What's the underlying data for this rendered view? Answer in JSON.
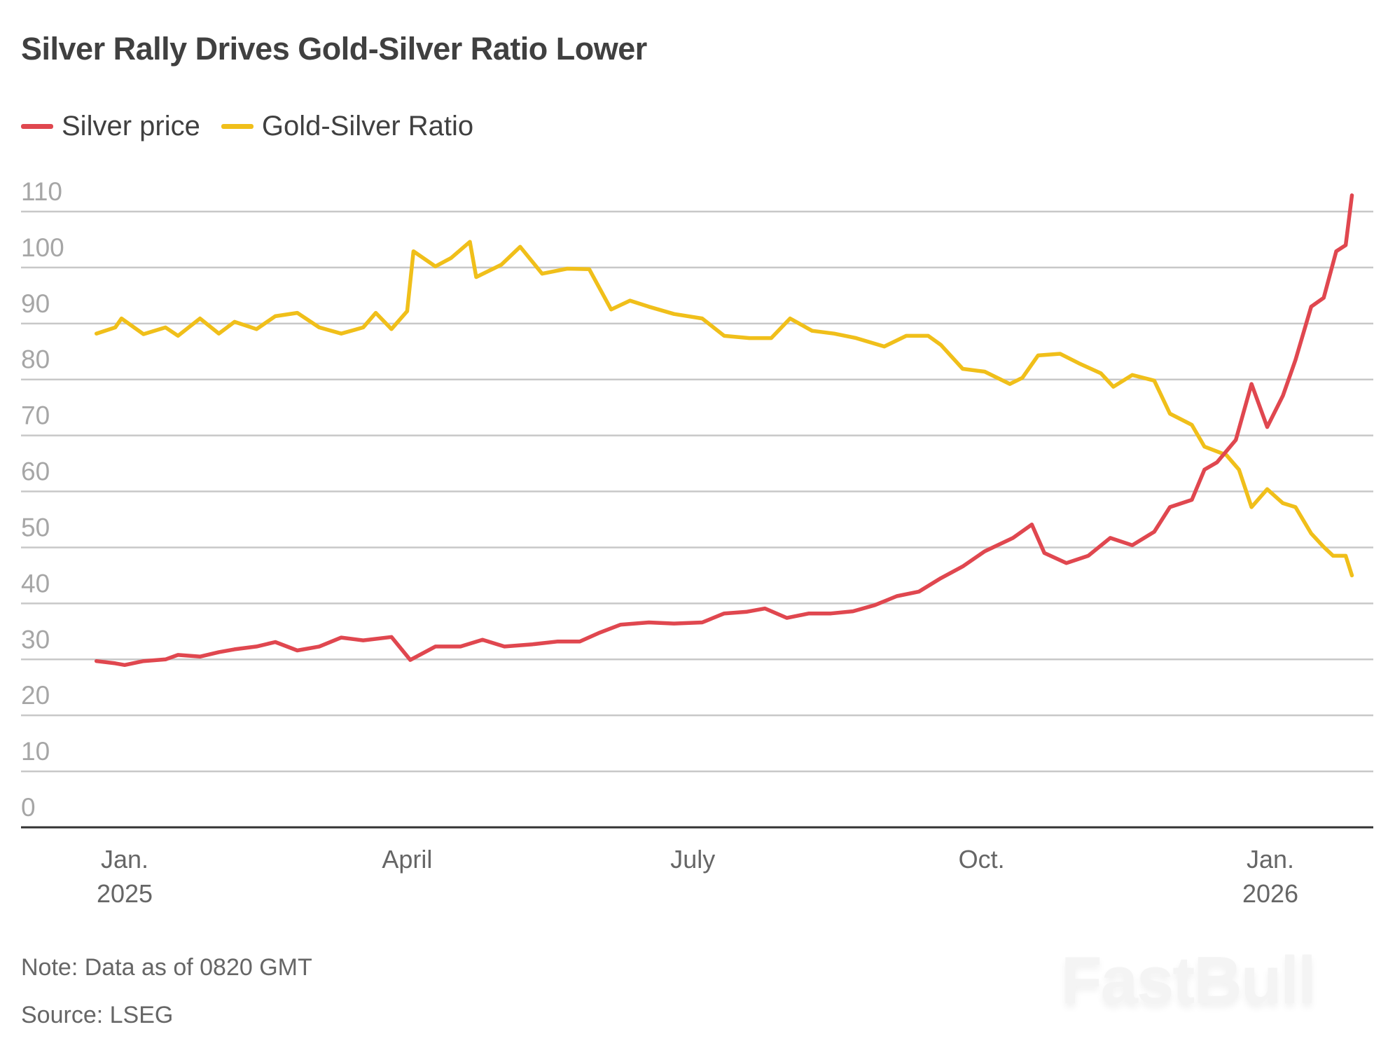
{
  "chart_data": {
    "type": "line",
    "title": "Silver Rally Drives Gold-Silver Ratio Lower",
    "xlabel": "",
    "ylabel": "",
    "ylim": [
      0,
      110
    ],
    "yticks": [
      0,
      10,
      20,
      30,
      40,
      50,
      60,
      70,
      80,
      90,
      100,
      110
    ],
    "grid": true,
    "legend_position": "top-left",
    "xticks": [
      {
        "date": "2025-01-01",
        "label": "Jan.",
        "sublabel": "2025"
      },
      {
        "date": "2025-04-01",
        "label": "April",
        "sublabel": ""
      },
      {
        "date": "2025-07-01",
        "label": "July",
        "sublabel": ""
      },
      {
        "date": "2025-10-01",
        "label": "Oct.",
        "sublabel": ""
      },
      {
        "date": "2026-01-01",
        "label": "Jan.",
        "sublabel": "2026"
      }
    ],
    "series": [
      {
        "name": "Silver price",
        "color": "#e0474f",
        "points": [
          [
            "2024-12-23",
            29.7
          ],
          [
            "2024-12-29",
            29.3
          ],
          [
            "2025-01-01",
            29.0
          ],
          [
            "2025-01-07",
            29.7
          ],
          [
            "2025-01-14",
            30.0
          ],
          [
            "2025-01-18",
            30.8
          ],
          [
            "2025-01-25",
            30.5
          ],
          [
            "2025-01-31",
            31.3
          ],
          [
            "2025-02-05",
            31.8
          ],
          [
            "2025-02-12",
            32.3
          ],
          [
            "2025-02-18",
            33.1
          ],
          [
            "2025-02-25",
            31.6
          ],
          [
            "2025-03-04",
            32.3
          ],
          [
            "2025-03-11",
            33.9
          ],
          [
            "2025-03-18",
            33.4
          ],
          [
            "2025-03-27",
            34.0
          ],
          [
            "2025-04-02",
            29.9
          ],
          [
            "2025-04-10",
            32.3
          ],
          [
            "2025-04-18",
            32.3
          ],
          [
            "2025-04-25",
            33.5
          ],
          [
            "2025-05-02",
            32.3
          ],
          [
            "2025-05-11",
            32.7
          ],
          [
            "2025-05-19",
            33.2
          ],
          [
            "2025-05-26",
            33.2
          ],
          [
            "2025-06-01",
            34.7
          ],
          [
            "2025-06-08",
            36.2
          ],
          [
            "2025-06-17",
            36.6
          ],
          [
            "2025-06-25",
            36.4
          ],
          [
            "2025-07-04",
            36.6
          ],
          [
            "2025-07-11",
            38.2
          ],
          [
            "2025-07-18",
            38.5
          ],
          [
            "2025-07-24",
            39.1
          ],
          [
            "2025-07-31",
            37.4
          ],
          [
            "2025-08-07",
            38.2
          ],
          [
            "2025-08-14",
            38.2
          ],
          [
            "2025-08-21",
            38.6
          ],
          [
            "2025-08-28",
            39.7
          ],
          [
            "2025-09-04",
            41.3
          ],
          [
            "2025-09-11",
            42.1
          ],
          [
            "2025-09-18",
            44.5
          ],
          [
            "2025-09-25",
            46.6
          ],
          [
            "2025-10-02",
            49.3
          ],
          [
            "2025-10-11",
            51.7
          ],
          [
            "2025-10-17",
            54.1
          ],
          [
            "2025-10-21",
            49.0
          ],
          [
            "2025-10-28",
            47.2
          ],
          [
            "2025-11-04",
            48.5
          ],
          [
            "2025-11-11",
            51.7
          ],
          [
            "2025-11-18",
            50.4
          ],
          [
            "2025-11-25",
            52.8
          ],
          [
            "2025-11-30",
            57.2
          ],
          [
            "2025-12-07",
            58.5
          ],
          [
            "2025-12-11",
            63.9
          ],
          [
            "2025-12-15",
            65.2
          ],
          [
            "2025-12-21",
            69.2
          ],
          [
            "2025-12-26",
            79.2
          ],
          [
            "2025-12-31",
            71.5
          ],
          [
            "2026-01-05",
            77.1
          ],
          [
            "2026-01-09",
            83.5
          ],
          [
            "2026-01-14",
            93.0
          ],
          [
            "2026-01-18",
            94.6
          ],
          [
            "2026-01-22",
            102.9
          ],
          [
            "2026-01-25",
            104.0
          ],
          [
            "2026-01-27",
            112.9
          ]
        ]
      },
      {
        "name": "Gold-Silver Ratio",
        "color": "#f0bf1a",
        "points": [
          [
            "2024-12-23",
            88.2
          ],
          [
            "2024-12-29",
            89.3
          ],
          [
            "2024-12-31",
            90.9
          ],
          [
            "2025-01-07",
            88.1
          ],
          [
            "2025-01-14",
            89.3
          ],
          [
            "2025-01-18",
            87.8
          ],
          [
            "2025-01-25",
            90.9
          ],
          [
            "2025-01-31",
            88.2
          ],
          [
            "2025-02-05",
            90.3
          ],
          [
            "2025-02-12",
            89.0
          ],
          [
            "2025-02-18",
            91.3
          ],
          [
            "2025-02-25",
            91.9
          ],
          [
            "2025-03-04",
            89.3
          ],
          [
            "2025-03-11",
            88.2
          ],
          [
            "2025-03-18",
            89.3
          ],
          [
            "2025-03-22",
            91.9
          ],
          [
            "2025-03-27",
            89.0
          ],
          [
            "2025-04-01",
            92.2
          ],
          [
            "2025-04-03",
            102.9
          ],
          [
            "2025-04-10",
            100.2
          ],
          [
            "2025-04-15",
            101.7
          ],
          [
            "2025-04-21",
            104.6
          ],
          [
            "2025-04-23",
            98.3
          ],
          [
            "2025-05-01",
            100.5
          ],
          [
            "2025-05-07",
            103.7
          ],
          [
            "2025-05-14",
            98.9
          ],
          [
            "2025-05-22",
            99.8
          ],
          [
            "2025-05-29",
            99.7
          ],
          [
            "2025-06-05",
            92.5
          ],
          [
            "2025-06-11",
            94.1
          ],
          [
            "2025-06-17",
            93.0
          ],
          [
            "2025-06-25",
            91.7
          ],
          [
            "2025-07-04",
            90.9
          ],
          [
            "2025-07-11",
            87.8
          ],
          [
            "2025-07-19",
            87.4
          ],
          [
            "2025-07-26",
            87.4
          ],
          [
            "2025-08-01",
            90.9
          ],
          [
            "2025-08-08",
            88.7
          ],
          [
            "2025-08-15",
            88.2
          ],
          [
            "2025-08-22",
            87.4
          ],
          [
            "2025-08-31",
            85.9
          ],
          [
            "2025-09-07",
            87.8
          ],
          [
            "2025-09-14",
            87.8
          ],
          [
            "2025-09-18",
            86.2
          ],
          [
            "2025-09-25",
            81.9
          ],
          [
            "2025-10-02",
            81.4
          ],
          [
            "2025-10-10",
            79.2
          ],
          [
            "2025-10-14",
            80.3
          ],
          [
            "2025-10-19",
            84.3
          ],
          [
            "2025-10-26",
            84.6
          ],
          [
            "2025-11-01",
            82.9
          ],
          [
            "2025-11-08",
            81.1
          ],
          [
            "2025-11-12",
            78.7
          ],
          [
            "2025-11-18",
            80.8
          ],
          [
            "2025-11-25",
            79.8
          ],
          [
            "2025-11-30",
            73.9
          ],
          [
            "2025-12-07",
            71.9
          ],
          [
            "2025-12-11",
            68.0
          ],
          [
            "2025-12-18",
            66.5
          ],
          [
            "2025-12-22",
            63.9
          ],
          [
            "2025-12-26",
            57.2
          ],
          [
            "2025-12-31",
            60.4
          ],
          [
            "2026-01-05",
            57.9
          ],
          [
            "2026-01-09",
            57.2
          ],
          [
            "2026-01-14",
            52.5
          ],
          [
            "2026-01-18",
            50.1
          ],
          [
            "2026-01-21",
            48.5
          ],
          [
            "2026-01-25",
            48.5
          ],
          [
            "2026-01-27",
            45.0
          ]
        ]
      }
    ]
  },
  "header": {
    "title": "Silver Rally Drives Gold-Silver Ratio Lower"
  },
  "legend": [
    {
      "label": "Silver price",
      "color": "#e0474f"
    },
    {
      "label": "Gold-Silver Ratio",
      "color": "#f0bf1a"
    }
  ],
  "footer": {
    "note": "Note: Data as of 0820 GMT",
    "source": "Source: LSEG",
    "watermark": "FastBull"
  }
}
